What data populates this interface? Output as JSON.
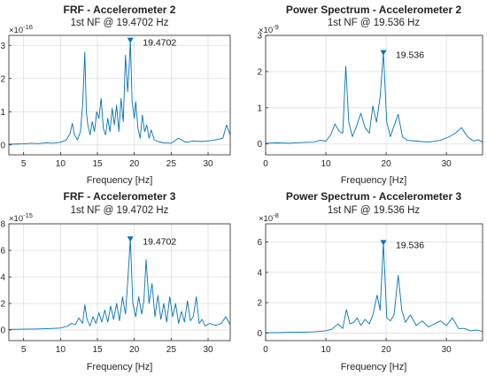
{
  "chart_data": [
    {
      "type": "line",
      "title": "FRF - Accelerometer 2",
      "subtitle": "1st NF @ 19.4702 Hz",
      "xlabel": "Frequency [Hz]",
      "ylabel": "",
      "exponent_label": "×10",
      "exponent_power": "-16",
      "xlim": [
        3,
        33
      ],
      "ylim": [
        -0.3,
        3.3
      ],
      "xticks": [
        5,
        10,
        15,
        20,
        25,
        30
      ],
      "yticks": [
        0,
        1,
        2,
        3
      ],
      "grid": true,
      "line_color": "#0072BD",
      "peak": {
        "x": 19.47,
        "y": 3.15,
        "label": "19.4702"
      },
      "x": [
        3,
        5,
        6,
        7,
        8,
        9,
        10,
        10.8,
        11.3,
        11.6,
        11.9,
        12.3,
        12.7,
        13.0,
        13.3,
        13.5,
        13.7,
        14.0,
        14.3,
        14.6,
        14.9,
        15.2,
        15.5,
        15.8,
        16.1,
        16.4,
        16.7,
        17.0,
        17.3,
        17.6,
        17.9,
        18.2,
        18.5,
        18.8,
        19.1,
        19.3,
        19.47,
        19.7,
        20.0,
        20.2,
        20.5,
        20.8,
        21.1,
        21.4,
        21.7,
        22.0,
        22.3,
        22.7,
        23.2,
        24,
        25,
        26,
        27,
        28,
        29,
        30,
        31,
        32,
        32.5,
        33
      ],
      "y": [
        0.02,
        0.03,
        0.05,
        0.04,
        0.06,
        0.05,
        0.08,
        0.15,
        0.35,
        0.65,
        0.3,
        0.15,
        0.4,
        1.2,
        2.8,
        1.0,
        0.6,
        0.3,
        0.7,
        0.4,
        1.0,
        0.8,
        1.4,
        0.5,
        0.3,
        0.8,
        0.4,
        1.1,
        0.6,
        1.2,
        0.4,
        1.4,
        0.7,
        2.7,
        1.6,
        2.3,
        3.15,
        1.3,
        0.8,
        1.3,
        0.5,
        0.2,
        0.9,
        0.4,
        0.6,
        0.2,
        0.45,
        0.15,
        0.1,
        0.06,
        0.05,
        0.2,
        0.08,
        0.12,
        0.1,
        0.12,
        0.15,
        0.2,
        0.6,
        0.3
      ]
    },
    {
      "type": "line",
      "title": "Power Spectrum - Accelerometer 2",
      "subtitle": "1st NF @ 19.536 Hz",
      "xlabel": "Frequency [Hz]",
      "ylabel": "",
      "exponent_label": "×10",
      "exponent_power": "-9",
      "xlim": [
        0,
        36
      ],
      "ylim": [
        -0.3,
        3.0
      ],
      "xticks": [
        0,
        10,
        20,
        30
      ],
      "yticks": [
        0,
        1,
        2,
        3
      ],
      "grid": true,
      "line_color": "#0072BD",
      "peak": {
        "x": 19.536,
        "y": 2.52,
        "label": "19.536"
      },
      "x": [
        0,
        2,
        4,
        6,
        8,
        9,
        10,
        10.8,
        11.5,
        12.2,
        12.8,
        13.3,
        13.8,
        14.4,
        15.0,
        15.8,
        16.5,
        17.2,
        17.8,
        18.4,
        19.0,
        19.536,
        20.1,
        20.7,
        21.3,
        22.0,
        22.7,
        23.5,
        25,
        27,
        29,
        30.5,
        31.5,
        32.5,
        33.5,
        34.5,
        35.2,
        36
      ],
      "y": [
        0.02,
        0.03,
        0.02,
        0.04,
        0.05,
        0.1,
        0.08,
        0.25,
        0.55,
        0.35,
        0.3,
        2.15,
        0.6,
        0.2,
        0.45,
        0.85,
        0.45,
        0.3,
        1.05,
        0.6,
        1.3,
        2.52,
        0.6,
        0.2,
        0.5,
        0.82,
        0.2,
        0.1,
        0.08,
        0.05,
        0.1,
        0.2,
        0.3,
        0.45,
        0.2,
        0.08,
        0.12,
        0.05
      ]
    },
    {
      "type": "line",
      "title": "FRF - Accelerometer 3",
      "subtitle": "1st NF @ 19.4702 Hz",
      "xlabel": "Frequency [Hz]",
      "ylabel": "",
      "exponent_label": "×10",
      "exponent_power": "-15",
      "xlim": [
        3,
        33
      ],
      "ylim": [
        -0.8,
        8.0
      ],
      "xticks": [
        5,
        10,
        15,
        20,
        25,
        30
      ],
      "yticks": [
        0,
        2,
        4,
        6,
        8
      ],
      "grid": true,
      "line_color": "#0072BD",
      "peak": {
        "x": 19.47,
        "y": 6.85,
        "label": "19.4702"
      },
      "x": [
        3,
        5,
        7,
        9,
        10,
        11,
        11.5,
        12,
        12.5,
        13.0,
        13.3,
        13.6,
        14.0,
        14.4,
        14.8,
        15.2,
        15.6,
        16.0,
        16.4,
        16.8,
        17.2,
        17.6,
        18.0,
        18.4,
        18.8,
        19.1,
        19.47,
        19.8,
        20.2,
        20.6,
        21.0,
        21.3,
        21.6,
        22.0,
        22.4,
        22.8,
        23.2,
        23.6,
        24.0,
        24.4,
        24.8,
        25.2,
        25.6,
        26.0,
        26.4,
        26.8,
        27.2,
        27.6,
        28.0,
        28.4,
        28.8,
        29.2,
        29.6,
        30.2,
        31,
        31.8,
        32.4,
        33
      ],
      "y": [
        0.05,
        0.06,
        0.08,
        0.12,
        0.15,
        0.3,
        0.5,
        0.4,
        0.9,
        0.5,
        1.9,
        0.8,
        0.3,
        1.0,
        0.5,
        1.3,
        0.6,
        1.5,
        0.6,
        1.8,
        0.8,
        2.0,
        0.7,
        2.5,
        1.2,
        3.6,
        6.85,
        2.0,
        1.0,
        2.5,
        1.2,
        2.2,
        5.3,
        2.0,
        3.5,
        1.0,
        2.6,
        0.8,
        2.0,
        0.6,
        2.5,
        1.0,
        2.0,
        0.5,
        1.4,
        0.6,
        2.2,
        0.7,
        1.0,
        2.5,
        0.5,
        0.8,
        0.3,
        0.5,
        0.35,
        0.5,
        1.0,
        0.4
      ]
    },
    {
      "type": "line",
      "title": "Power Spectrum - Accelerometer 3",
      "subtitle": "1st NF @ 19.536 Hz",
      "xlabel": "Frequency [Hz]",
      "ylabel": "",
      "exponent_label": "×10",
      "exponent_power": "-8",
      "xlim": [
        0,
        36
      ],
      "ylim": [
        -0.5,
        7.2
      ],
      "xticks": [
        0,
        10,
        20,
        30
      ],
      "yticks": [
        0,
        2,
        4,
        6
      ],
      "grid": true,
      "line_color": "#0072BD",
      "peak": {
        "x": 19.536,
        "y": 5.95,
        "label": "19.536"
      },
      "x": [
        0,
        2,
        4,
        6,
        8,
        10,
        11,
        12,
        12.8,
        13.4,
        14.0,
        14.6,
        15.2,
        15.8,
        16.5,
        17.2,
        17.8,
        18.5,
        19.0,
        19.536,
        20.1,
        20.7,
        21.3,
        22.0,
        22.6,
        23.2,
        24,
        25,
        26,
        27,
        28,
        29,
        30,
        31,
        32,
        33,
        34,
        35,
        36
      ],
      "y": [
        0.02,
        0.03,
        0.05,
        0.05,
        0.08,
        0.15,
        0.25,
        0.6,
        0.3,
        1.55,
        0.6,
        0.7,
        1.0,
        0.5,
        0.9,
        0.6,
        1.2,
        2.5,
        1.5,
        5.95,
        1.0,
        0.8,
        1.2,
        3.8,
        1.5,
        0.7,
        1.2,
        0.5,
        0.8,
        0.4,
        0.6,
        0.8,
        0.5,
        1.0,
        0.3,
        0.3,
        0.15,
        0.2,
        0.1
      ]
    }
  ]
}
